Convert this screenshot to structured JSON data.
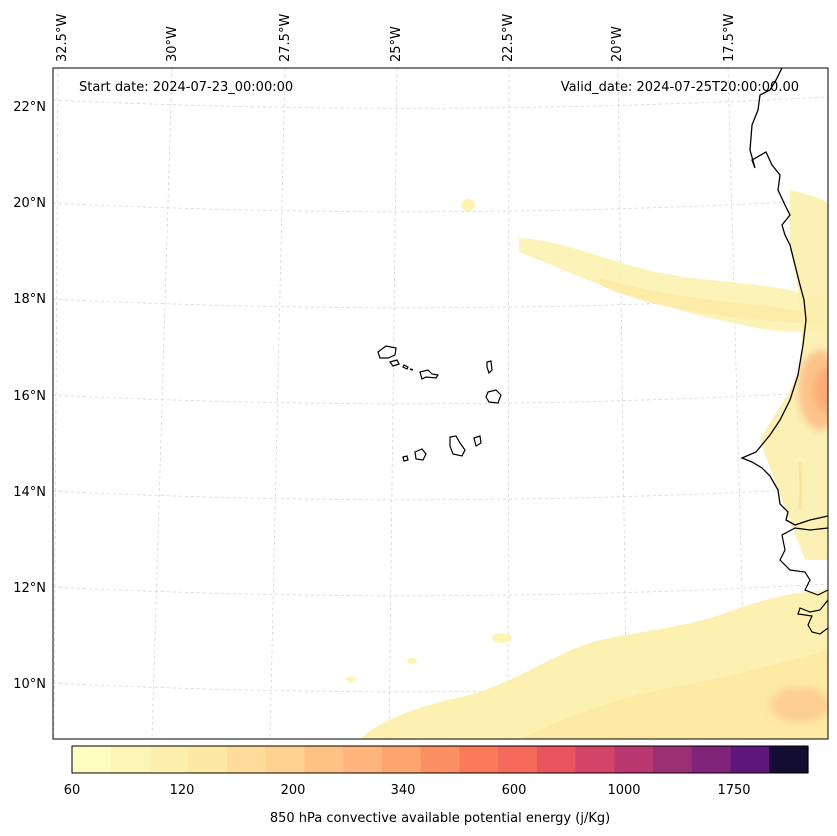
{
  "map": {
    "start_date": "Start date: 2024-07-23_00:00:00",
    "valid_date": "Valid_date: 2024-07-25T20:00:00.00",
    "lon_labels": [
      "32.5°W",
      "30°W",
      "27.5°W",
      "25°W",
      "22.5°W",
      "20°W",
      "17.5°W"
    ],
    "lat_labels": [
      "22°N",
      "20°N",
      "18°N",
      "16°N",
      "14°N",
      "12°N",
      "10°N"
    ],
    "land_outline_color": "#000000",
    "ocean_color": "#ffffff",
    "gridline_color": "#cccccc"
  },
  "colorbar": {
    "label": "850 hPa convective available potential energy (j/Kg)",
    "tick_labels": [
      "60",
      "120",
      "200",
      "340",
      "600",
      "1000",
      "1750"
    ],
    "colors": [
      "#fcfdbf",
      "#fdf5b5",
      "#fdf0ae",
      "#fee8a5",
      "#fedd9a",
      "#fed18f",
      "#fec384",
      "#feb47b",
      "#fda46f",
      "#fc9064",
      "#fb7a58",
      "#f56a5b",
      "#e9555f",
      "#d44368",
      "#b9386f",
      "#9c2e74",
      "#7f2478",
      "#5e167b",
      "#120d31"
    ]
  }
}
